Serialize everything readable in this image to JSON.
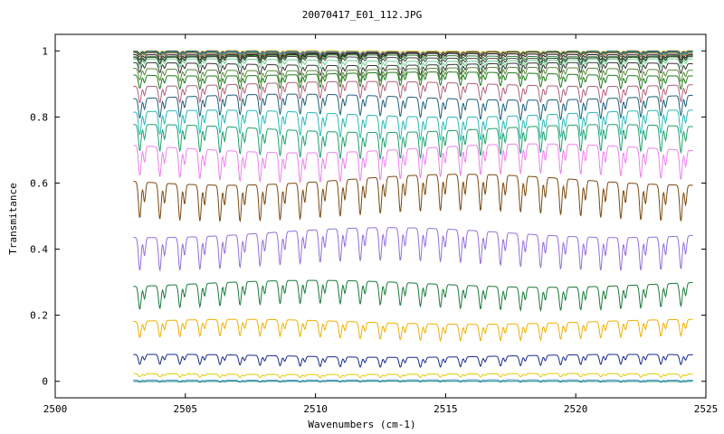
{
  "chart_data": {
    "type": "line",
    "title": "20070417_E01_112.JPG",
    "xlabel": "Wavenumbers (cm-1)",
    "ylabel": "Transmitance",
    "xlim": [
      2500,
      2525
    ],
    "ylim": [
      -0.05,
      1.05
    ],
    "xticks": [
      "2500",
      "2505",
      "2510",
      "2515",
      "2520",
      "2525"
    ],
    "yticks": [
      "0",
      "0.2",
      "0.4",
      "0.6",
      "0.8",
      "1"
    ],
    "x_start": 2503.0,
    "x_end": 2524.5,
    "line_spacing": 0.77,
    "grid": false,
    "series": [
      {
        "baseline": 1.0,
        "depth": 0.005,
        "color": "#d4c21a"
      },
      {
        "baseline": 0.998,
        "depth": 0.008,
        "color": "#2a3fb0"
      },
      {
        "baseline": 0.996,
        "depth": 0.01,
        "color": "#1f8a3a"
      },
      {
        "baseline": 0.994,
        "depth": 0.012,
        "color": "#8a4a2a"
      },
      {
        "baseline": 0.99,
        "depth": 0.015,
        "color": "#111111"
      },
      {
        "baseline": 0.985,
        "depth": 0.018,
        "color": "#2e7d32"
      },
      {
        "baseline": 0.98,
        "depth": 0.02,
        "color": "#444444"
      },
      {
        "baseline": 0.972,
        "depth": 0.025,
        "color": "#6fcf8f"
      },
      {
        "baseline": 0.96,
        "depth": 0.03,
        "color": "#333333"
      },
      {
        "baseline": 0.945,
        "depth": 0.035,
        "color": "#5a8a3a"
      },
      {
        "baseline": 0.93,
        "depth": 0.04,
        "color": "#1e7b1e"
      },
      {
        "baseline": 0.9,
        "depth": 0.05,
        "color": "#b0607a"
      },
      {
        "baseline": 0.86,
        "depth": 0.06,
        "color": "#1f5f7a"
      },
      {
        "baseline": 0.81,
        "depth": 0.07,
        "color": "#2bb8b8"
      },
      {
        "baseline": 0.765,
        "depth": 0.08,
        "color": "#1ea06a"
      },
      {
        "baseline": 0.705,
        "depth": 0.09,
        "color": "#ee82ee"
      },
      {
        "baseline": 0.61,
        "depth": 0.11,
        "color": "#7a4a10"
      },
      {
        "baseline": 0.45,
        "depth": 0.1,
        "color": "#9370db"
      },
      {
        "baseline": 0.295,
        "depth": 0.07,
        "color": "#1a7a3a"
      },
      {
        "baseline": 0.18,
        "depth": 0.05,
        "color": "#f0b000"
      },
      {
        "baseline": 0.077,
        "depth": 0.03,
        "color": "#1a2a8a"
      },
      {
        "baseline": 0.022,
        "depth": 0.01,
        "color": "#e6c800"
      },
      {
        "baseline": 0.004,
        "depth": 0.004,
        "color": "#4a90d0"
      },
      {
        "baseline": 0.0,
        "depth": 0.002,
        "color": "#1a8a7a"
      }
    ]
  }
}
